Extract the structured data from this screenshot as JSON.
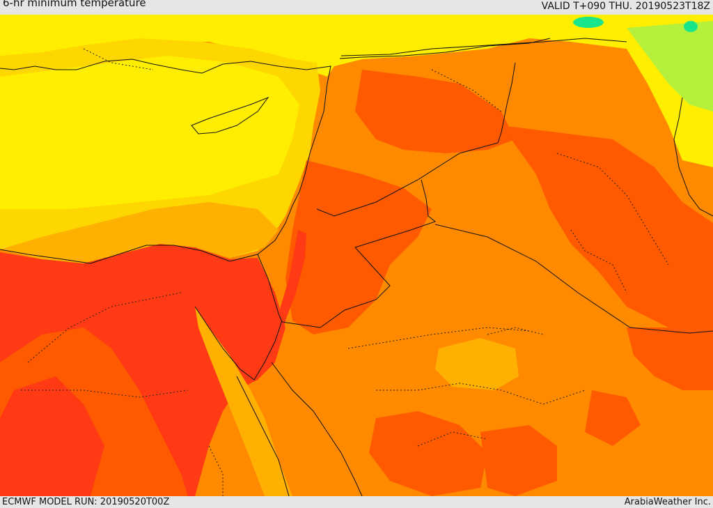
{
  "header": {
    "title": "6-hr minimum temperature",
    "valid": "VALID T+090 THU. 20190523T18Z"
  },
  "footer": {
    "model_run": "ECMWF MODEL RUN: 20190520T00Z",
    "credit": "ArabiaWeather Inc."
  },
  "palette": {
    "cool_green": "#19e68a",
    "light_green": "#b4f03c",
    "yellow_green": "#dcf50a",
    "yellow": "#ffee00",
    "gold": "#ffd700",
    "orange_light": "#ffb000",
    "orange": "#ff8a00",
    "orange_red": "#ff5a00",
    "red": "#ff3a14"
  }
}
